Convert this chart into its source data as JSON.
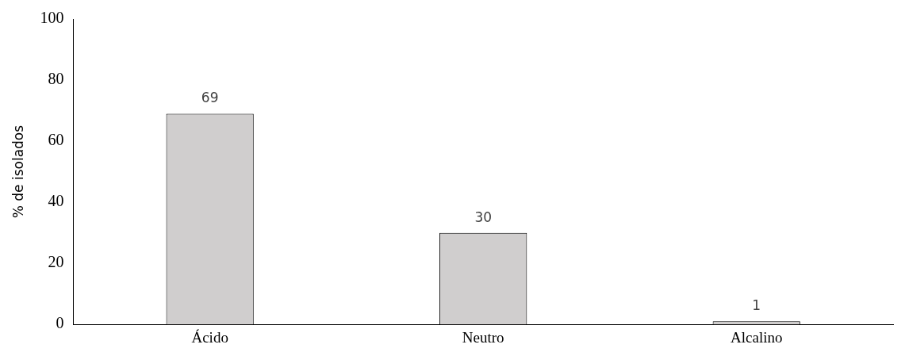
{
  "chart_data": {
    "type": "bar",
    "ylabel": "% de isolados",
    "categories": [
      "Ácido",
      "Neutro",
      "Alcalino"
    ],
    "values": [
      69,
      30,
      1
    ],
    "color": "#d0cece",
    "ylim": [
      0,
      100
    ],
    "yticks": [
      0,
      20,
      40,
      60,
      80,
      100
    ],
    "data_labels": true,
    "grid": false,
    "legend": false
  }
}
